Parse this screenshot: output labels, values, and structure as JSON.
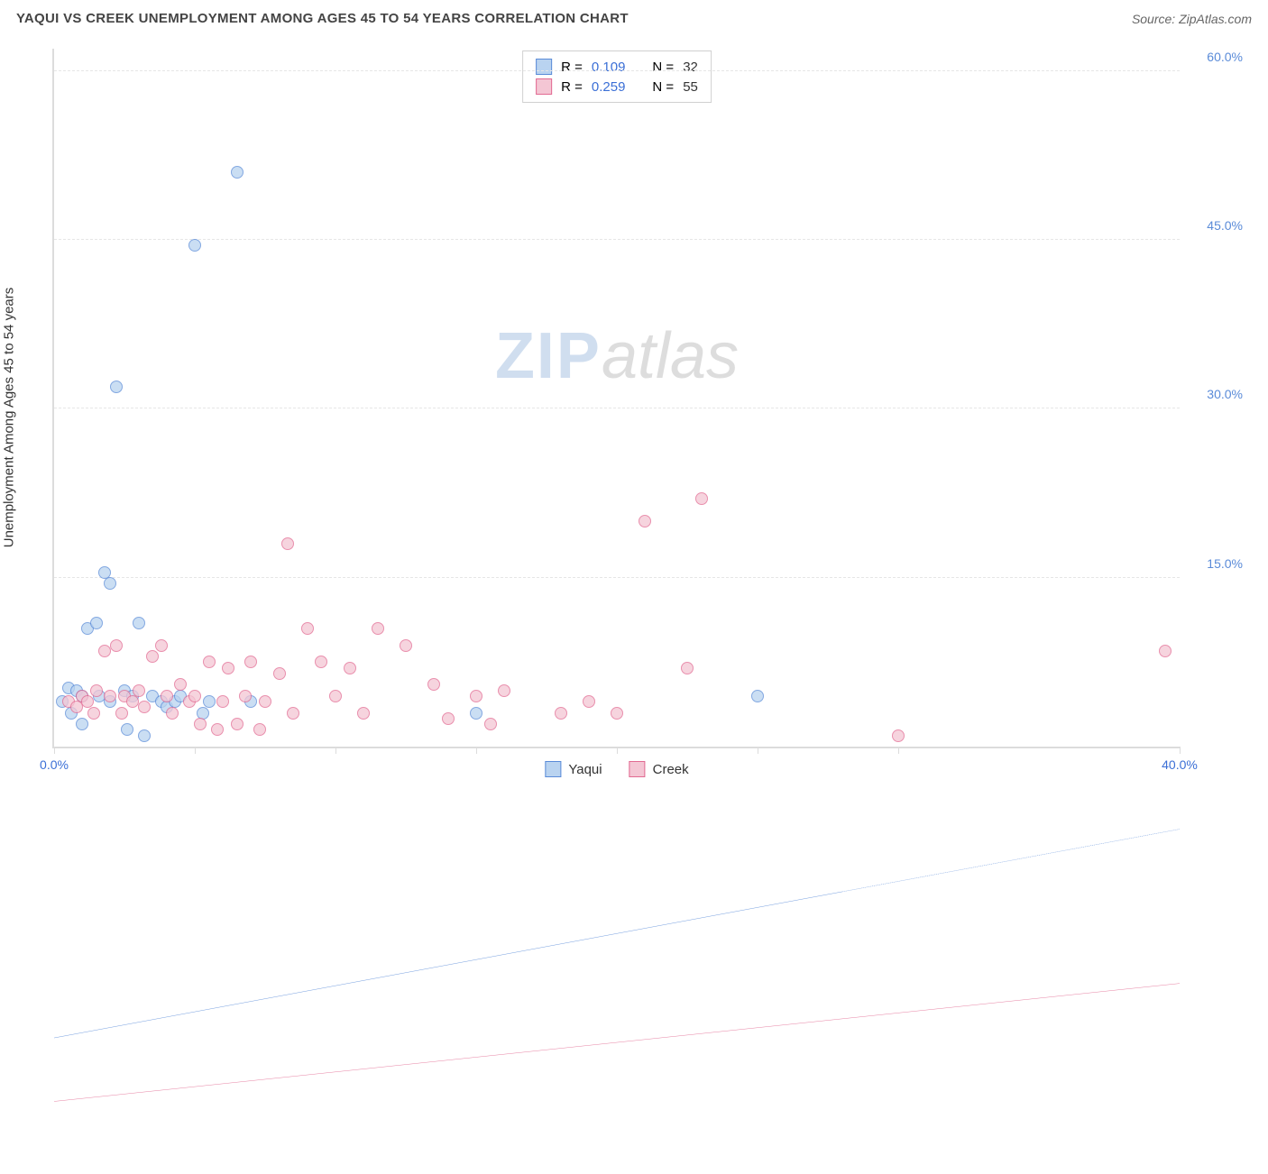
{
  "header": {
    "title": "YAQUI VS CREEK UNEMPLOYMENT AMONG AGES 45 TO 54 YEARS CORRELATION CHART",
    "source": "Source: ZipAtlas.com"
  },
  "watermark": {
    "zip": "ZIP",
    "atlas": "atlas"
  },
  "chart": {
    "type": "scatter",
    "ylabel": "Unemployment Among Ages 45 to 54 years",
    "background_color": "#ffffff",
    "grid_color": "#e6e6e6",
    "axis_color": "#dcdcdc",
    "xlim": [
      0,
      40
    ],
    "ylim": [
      0,
      62
    ],
    "xtick_positions": [
      0,
      5,
      10,
      15,
      20,
      25,
      30,
      40
    ],
    "xtick_labels": {
      "0": "0.0%",
      "40": "40.0%"
    },
    "xtick_label_color": "#3b6fd6",
    "ytick_positions": [
      15,
      30,
      45,
      60
    ],
    "ytick_labels": {
      "15": "15.0%",
      "30": "30.0%",
      "45": "45.0%",
      "60": "60.0%"
    },
    "ytick_label_color": "#5a8bd8",
    "marker_radius": 7,
    "marker_opacity": 0.75,
    "series": [
      {
        "name": "Yaqui",
        "fill": "#b9d3f0",
        "stroke": "#5a8bd8",
        "r": "0.109",
        "n": "32",
        "trend": {
          "y_at_x0": 7.5,
          "y_at_xmax": 19.0,
          "width": 2.5,
          "dash_after_x": 28
        },
        "points": [
          [
            0.3,
            4.0
          ],
          [
            0.5,
            5.2
          ],
          [
            0.6,
            3.0
          ],
          [
            0.8,
            5.0
          ],
          [
            1.0,
            4.5
          ],
          [
            1.0,
            2.0
          ],
          [
            1.2,
            10.5
          ],
          [
            1.5,
            11.0
          ],
          [
            1.6,
            4.5
          ],
          [
            1.8,
            15.5
          ],
          [
            2.0,
            14.5
          ],
          [
            2.0,
            4.0
          ],
          [
            2.2,
            32.0
          ],
          [
            2.5,
            5.0
          ],
          [
            2.6,
            1.5
          ],
          [
            2.8,
            4.5
          ],
          [
            3.0,
            11.0
          ],
          [
            3.2,
            1.0
          ],
          [
            3.5,
            4.5
          ],
          [
            3.8,
            4.0
          ],
          [
            4.0,
            3.5
          ],
          [
            4.3,
            4.0
          ],
          [
            4.5,
            4.5
          ],
          [
            5.0,
            44.5
          ],
          [
            5.3,
            3.0
          ],
          [
            5.5,
            4.0
          ],
          [
            6.5,
            51.0
          ],
          [
            7.0,
            4.0
          ],
          [
            15.0,
            3.0
          ],
          [
            25.0,
            4.5
          ]
        ]
      },
      {
        "name": "Creek",
        "fill": "#f4c6d4",
        "stroke": "#e26a92",
        "r": "0.259",
        "n": "55",
        "trend": {
          "y_at_x0": 4.0,
          "y_at_xmax": 10.5,
          "width": 2.5,
          "dash_after_x": 40
        },
        "points": [
          [
            0.5,
            4.0
          ],
          [
            0.8,
            3.5
          ],
          [
            1.0,
            4.5
          ],
          [
            1.2,
            4.0
          ],
          [
            1.4,
            3.0
          ],
          [
            1.5,
            5.0
          ],
          [
            1.8,
            8.5
          ],
          [
            2.0,
            4.5
          ],
          [
            2.2,
            9.0
          ],
          [
            2.4,
            3.0
          ],
          [
            2.5,
            4.5
          ],
          [
            2.8,
            4.0
          ],
          [
            3.0,
            5.0
          ],
          [
            3.2,
            3.5
          ],
          [
            3.5,
            8.0
          ],
          [
            3.8,
            9.0
          ],
          [
            4.0,
            4.5
          ],
          [
            4.2,
            3.0
          ],
          [
            4.5,
            5.5
          ],
          [
            4.8,
            4.0
          ],
          [
            5.0,
            4.5
          ],
          [
            5.2,
            2.0
          ],
          [
            5.5,
            7.5
          ],
          [
            5.8,
            1.5
          ],
          [
            6.0,
            4.0
          ],
          [
            6.2,
            7.0
          ],
          [
            6.5,
            2.0
          ],
          [
            6.8,
            4.5
          ],
          [
            7.0,
            7.5
          ],
          [
            7.3,
            1.5
          ],
          [
            7.5,
            4.0
          ],
          [
            8.0,
            6.5
          ],
          [
            8.3,
            18.0
          ],
          [
            8.5,
            3.0
          ],
          [
            9.0,
            10.5
          ],
          [
            9.5,
            7.5
          ],
          [
            10.0,
            4.5
          ],
          [
            10.5,
            7.0
          ],
          [
            11.0,
            3.0
          ],
          [
            11.5,
            10.5
          ],
          [
            12.5,
            9.0
          ],
          [
            13.5,
            5.5
          ],
          [
            14.0,
            2.5
          ],
          [
            15.0,
            4.5
          ],
          [
            15.5,
            2.0
          ],
          [
            16.0,
            5.0
          ],
          [
            18.0,
            3.0
          ],
          [
            19.0,
            4.0
          ],
          [
            20.0,
            3.0
          ],
          [
            21.0,
            20.0
          ],
          [
            22.5,
            7.0
          ],
          [
            23.0,
            22.0
          ],
          [
            30.0,
            1.0
          ],
          [
            39.5,
            8.5
          ]
        ]
      }
    ],
    "legend_bottom": [
      {
        "label": "Yaqui",
        "fill": "#b9d3f0",
        "stroke": "#5a8bd8"
      },
      {
        "label": "Creek",
        "fill": "#f4c6d4",
        "stroke": "#e26a92"
      }
    ],
    "legend_top_text": {
      "r_label": "R =",
      "n_label": "N =",
      "r_color": "#3b6fd6",
      "n_color": "#333333"
    }
  }
}
